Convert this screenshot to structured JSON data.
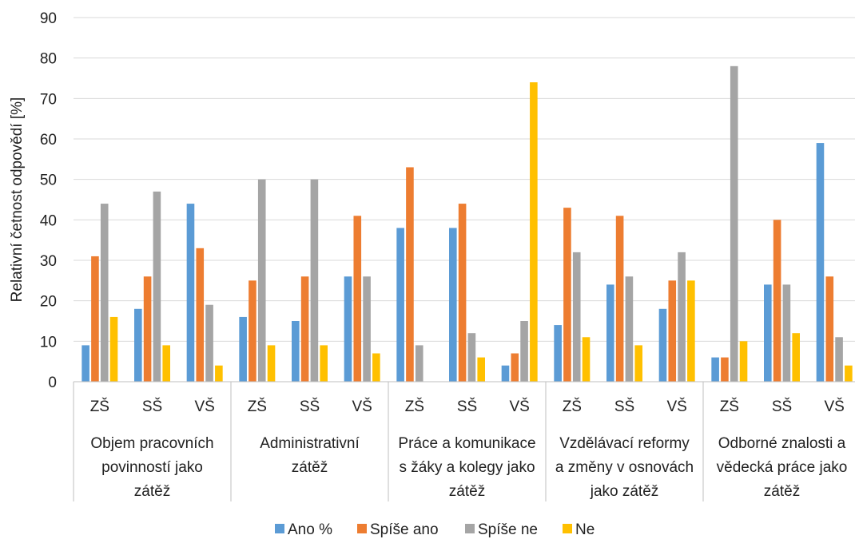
{
  "chart_data": {
    "type": "bar",
    "ylabel": "Relativní četnost odpovědí [%]",
    "ylim": [
      0,
      90
    ],
    "yticks": [
      0,
      10,
      20,
      30,
      40,
      50,
      60,
      70,
      80,
      90
    ],
    "grid": true,
    "legend_position": "bottom",
    "groups": [
      {
        "label_lines": [
          "Objem pracovních",
          "povinností jako",
          "zátěž"
        ]
      },
      {
        "label_lines": [
          "Administrativní",
          "zátěž"
        ]
      },
      {
        "label_lines": [
          "Práce a komunikace",
          "s žáky a kolegy jako",
          "zátěž"
        ]
      },
      {
        "label_lines": [
          "Vzdělávací reformy",
          "a změny v osnovách",
          "jako zátěž"
        ]
      },
      {
        "label_lines": [
          "Odborné znalosti a",
          "vědecká práce jako",
          "zátěž"
        ]
      }
    ],
    "categories": [
      "ZŠ",
      "SŠ",
      "VŠ",
      "ZŠ",
      "SŠ",
      "VŠ",
      "ZŠ",
      "SŠ",
      "VŠ",
      "ZŠ",
      "SŠ",
      "VŠ",
      "ZŠ",
      "SŠ",
      "VŠ"
    ],
    "series": [
      {
        "name": "Ano %",
        "color": "#5b9bd5",
        "values": [
          9,
          18,
          44,
          16,
          15,
          26,
          38,
          38,
          4,
          14,
          24,
          18,
          6,
          24,
          59
        ]
      },
      {
        "name": "Spíše ano",
        "color": "#ed7d31",
        "values": [
          31,
          26,
          33,
          25,
          26,
          41,
          53,
          44,
          7,
          43,
          41,
          25,
          6,
          40,
          26
        ]
      },
      {
        "name": "Spíše ne",
        "color": "#a5a5a5",
        "values": [
          44,
          47,
          19,
          50,
          50,
          26,
          9,
          12,
          15,
          32,
          26,
          32,
          78,
          24,
          11
        ]
      },
      {
        "name": "Ne",
        "color": "#ffc000",
        "values": [
          16,
          9,
          4,
          9,
          9,
          7,
          0,
          6,
          74,
          11,
          9,
          25,
          10,
          12,
          4
        ]
      }
    ]
  }
}
